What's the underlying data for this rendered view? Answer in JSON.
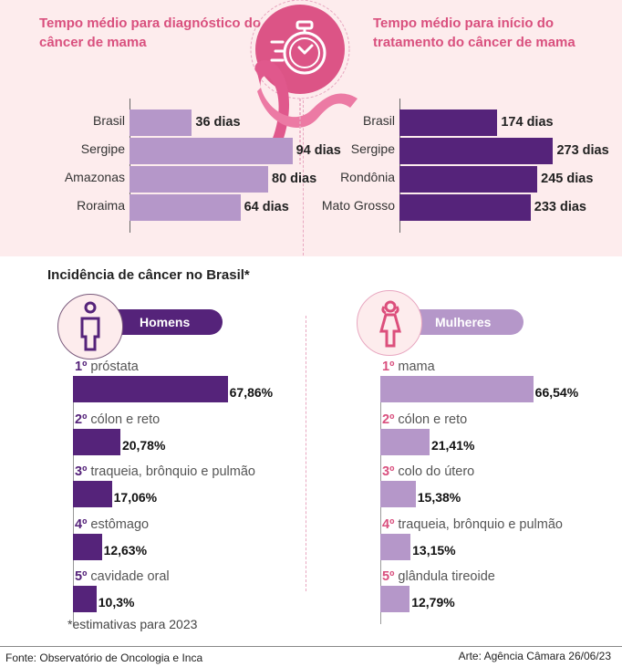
{
  "colors": {
    "title_pink": "#d9507e",
    "light_purple": "#b597c9",
    "dark_purple": "#55237a",
    "background_pink": "#fdeced"
  },
  "chart_data": [
    {
      "type": "bar",
      "orientation": "horizontal",
      "title": "Tempo médio para diagnóstico do câncer de mama",
      "categories": [
        "Brasil",
        "Sergipe",
        "Amazonas",
        "Roraima"
      ],
      "values": [
        36,
        94,
        80,
        64
      ],
      "value_labels": [
        "36 dias",
        "94 dias",
        "80 dias",
        "64 dias"
      ],
      "unit": "dias",
      "xlabel": "",
      "ylabel": ""
    },
    {
      "type": "bar",
      "orientation": "horizontal",
      "title": "Tempo médio para início do tratamento do câncer de mama",
      "categories": [
        "Brasil",
        "Sergipe",
        "Rondônia",
        "Mato Grosso"
      ],
      "values": [
        174,
        273,
        245,
        233
      ],
      "value_labels": [
        "174 dias",
        "273 dias",
        "245 dias",
        "233 dias"
      ],
      "unit": "dias",
      "xlabel": "",
      "ylabel": ""
    },
    {
      "type": "bar",
      "orientation": "horizontal",
      "title": "Incidência de câncer no Brasil* — Homens",
      "ranks": [
        "1º",
        "2º",
        "3º",
        "4º",
        "5º"
      ],
      "categories": [
        "próstata",
        "cólon e reto",
        "traqueia, brônquio e pulmão",
        "estômago",
        "cavidade oral"
      ],
      "values": [
        67.86,
        20.78,
        17.06,
        12.63,
        10.3
      ],
      "value_labels": [
        "67,86%",
        "20,78%",
        "17,06%",
        "12,63%",
        "10,3%"
      ],
      "unit": "%"
    },
    {
      "type": "bar",
      "orientation": "horizontal",
      "title": "Incidência de câncer no Brasil* — Mulheres",
      "ranks": [
        "1º",
        "2º",
        "3º",
        "4º",
        "5º"
      ],
      "categories": [
        "mama",
        "cólon e reto",
        "colo do útero",
        "traqueia, brônquio e pulmão",
        "glândula tireoide"
      ],
      "values": [
        66.54,
        21.41,
        15.38,
        13.15,
        12.79
      ],
      "value_labels": [
        "66,54%",
        "21,41%",
        "15,38%",
        "13,15%",
        "12,79%"
      ],
      "unit": "%"
    }
  ],
  "top": {
    "left_title": "Tempo médio para diagnóstico do câncer de mama",
    "right_title": "Tempo médio para início do tratamento do câncer de mama",
    "center_icon": "stopwatch-icon"
  },
  "incidence": {
    "title": "Incidência de câncer no Brasil*",
    "men_label": "Homens",
    "women_label": "Mulheres",
    "men_icon": "man-icon",
    "women_icon": "woman-icon",
    "note": "*estimativas para 2023"
  },
  "footer": {
    "source": "Fonte: Observatório de Oncologia e Inca",
    "credit": "Arte: Agência Câmara 26/06/23"
  }
}
